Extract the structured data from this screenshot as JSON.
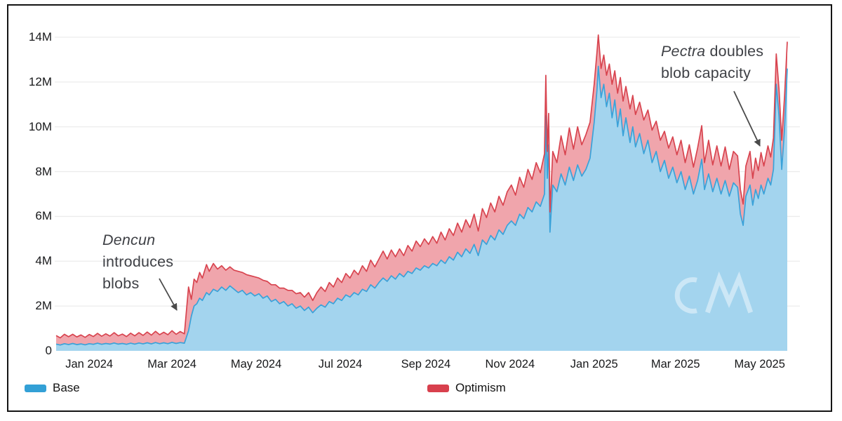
{
  "watermark": {
    "text": "CM"
  },
  "y_axis": {
    "ticks": [
      {
        "label": "14M",
        "value": 14
      },
      {
        "label": "12M",
        "value": 12
      },
      {
        "label": "10M",
        "value": 10
      },
      {
        "label": "8M",
        "value": 8
      },
      {
        "label": "6M",
        "value": 6
      },
      {
        "label": "4M",
        "value": 4
      },
      {
        "label": "2M",
        "value": 2
      },
      {
        "label": "0",
        "value": 0
      }
    ]
  },
  "x_axis": {
    "ticks": [
      {
        "label": "Jan 2024",
        "date": "2024-01-01"
      },
      {
        "label": "Mar 2024",
        "date": "2024-03-01"
      },
      {
        "label": "May 2024",
        "date": "2024-05-01"
      },
      {
        "label": "Jul 2024",
        "date": "2024-07-01"
      },
      {
        "label": "Sep 2024",
        "date": "2024-09-01"
      },
      {
        "label": "Nov 2024",
        "date": "2024-11-01"
      },
      {
        "label": "Jan 2025",
        "date": "2025-01-01"
      },
      {
        "label": "Mar 2025",
        "date": "2025-03-01"
      },
      {
        "label": "May 2025",
        "date": "2025-05-01"
      }
    ]
  },
  "legend": [
    {
      "label": "Base",
      "color": "#33a0d6"
    },
    {
      "label": "Optimism",
      "color": "#d8404d"
    }
  ],
  "annotations": {
    "dencun": {
      "italic": "Dencun",
      "line2": "introduces",
      "line3": "blobs"
    },
    "pectra": {
      "italic": "Pectra",
      "line1_rest": " doubles",
      "line2": "blob capacity"
    }
  },
  "chart_data": {
    "type": "area",
    "stacked": true,
    "title": "",
    "xlabel": "",
    "ylabel": "",
    "unit_suffix": "M",
    "ylim": [
      0,
      14
    ],
    "grid": "horizontal",
    "legend_position": "bottom",
    "x_range": [
      "2023-12-08",
      "2025-05-21"
    ],
    "series_names": [
      "Base",
      "Optimism"
    ],
    "colors": {
      "base_fill": "#a3d4ee",
      "base_stroke": "#3aa2d9",
      "optimism_fill": "#f0a5ac",
      "optimism_stroke": "#d8444f",
      "gridline": "#ececec",
      "arrow": "#4a4a4a"
    },
    "points_format": [
      "date",
      "base_millions",
      "optimism_millions"
    ],
    "points": [
      [
        "2023-12-08",
        0.3,
        0.38
      ],
      [
        "2023-12-11",
        0.26,
        0.32
      ],
      [
        "2023-12-14",
        0.32,
        0.42
      ],
      [
        "2023-12-17",
        0.28,
        0.35
      ],
      [
        "2023-12-20",
        0.33,
        0.41
      ],
      [
        "2023-12-23",
        0.28,
        0.34
      ],
      [
        "2023-12-26",
        0.31,
        0.4
      ],
      [
        "2023-12-29",
        0.27,
        0.33
      ],
      [
        "2024-01-01",
        0.32,
        0.41
      ],
      [
        "2024-01-04",
        0.29,
        0.35
      ],
      [
        "2024-01-07",
        0.34,
        0.44
      ],
      [
        "2024-01-10",
        0.29,
        0.36
      ],
      [
        "2024-01-13",
        0.33,
        0.43
      ],
      [
        "2024-01-16",
        0.3,
        0.36
      ],
      [
        "2024-01-19",
        0.35,
        0.46
      ],
      [
        "2024-01-22",
        0.3,
        0.37
      ],
      [
        "2024-01-25",
        0.33,
        0.42
      ],
      [
        "2024-01-28",
        0.29,
        0.35
      ],
      [
        "2024-01-31",
        0.34,
        0.45
      ],
      [
        "2024-02-03",
        0.3,
        0.37
      ],
      [
        "2024-02-06",
        0.35,
        0.46
      ],
      [
        "2024-02-09",
        0.31,
        0.38
      ],
      [
        "2024-02-12",
        0.36,
        0.48
      ],
      [
        "2024-02-15",
        0.31,
        0.39
      ],
      [
        "2024-02-18",
        0.37,
        0.5
      ],
      [
        "2024-02-21",
        0.32,
        0.4
      ],
      [
        "2024-02-24",
        0.36,
        0.47
      ],
      [
        "2024-02-27",
        0.32,
        0.4
      ],
      [
        "2024-03-01",
        0.38,
        0.52
      ],
      [
        "2024-03-04",
        0.33,
        0.41
      ],
      [
        "2024-03-07",
        0.37,
        0.49
      ],
      [
        "2024-03-10",
        0.34,
        0.42
      ],
      [
        "2024-03-13",
        0.9,
        1.95
      ],
      [
        "2024-03-15",
        1.55,
        0.75
      ],
      [
        "2024-03-17",
        2.0,
        1.2
      ],
      [
        "2024-03-19",
        2.1,
        0.95
      ],
      [
        "2024-03-21",
        2.35,
        1.15
      ],
      [
        "2024-03-23",
        2.25,
        1.0
      ],
      [
        "2024-03-26",
        2.6,
        1.25
      ],
      [
        "2024-03-28",
        2.5,
        1.05
      ],
      [
        "2024-03-31",
        2.75,
        1.15
      ],
      [
        "2024-04-03",
        2.65,
        1.0
      ],
      [
        "2024-04-06",
        2.85,
        0.95
      ],
      [
        "2024-04-09",
        2.7,
        0.9
      ],
      [
        "2024-04-12",
        2.9,
        0.85
      ],
      [
        "2024-04-15",
        2.75,
        0.85
      ],
      [
        "2024-04-18",
        2.6,
        0.95
      ],
      [
        "2024-04-21",
        2.7,
        0.8
      ],
      [
        "2024-04-24",
        2.5,
        0.9
      ],
      [
        "2024-04-27",
        2.6,
        0.75
      ],
      [
        "2024-04-30",
        2.45,
        0.85
      ],
      [
        "2024-05-03",
        2.55,
        0.7
      ],
      [
        "2024-05-06",
        2.35,
        0.8
      ],
      [
        "2024-05-09",
        2.45,
        0.65
      ],
      [
        "2024-05-12",
        2.2,
        0.75
      ],
      [
        "2024-05-15",
        2.3,
        0.65
      ],
      [
        "2024-05-18",
        2.1,
        0.7
      ],
      [
        "2024-05-21",
        2.2,
        0.6
      ],
      [
        "2024-05-24",
        2.0,
        0.7
      ],
      [
        "2024-05-27",
        2.1,
        0.6
      ],
      [
        "2024-05-30",
        1.9,
        0.65
      ],
      [
        "2024-06-02",
        2.0,
        0.6
      ],
      [
        "2024-06-05",
        1.8,
        0.6
      ],
      [
        "2024-06-08",
        1.95,
        0.65
      ],
      [
        "2024-06-11",
        1.7,
        0.55
      ],
      [
        "2024-06-14",
        1.9,
        0.7
      ],
      [
        "2024-06-17",
        2.05,
        0.8
      ],
      [
        "2024-06-20",
        1.95,
        0.7
      ],
      [
        "2024-06-23",
        2.2,
        0.85
      ],
      [
        "2024-06-26",
        2.1,
        0.75
      ],
      [
        "2024-06-29",
        2.35,
        0.9
      ],
      [
        "2024-07-02",
        2.25,
        0.8
      ],
      [
        "2024-07-05",
        2.5,
        0.95
      ],
      [
        "2024-07-08",
        2.4,
        0.85
      ],
      [
        "2024-07-11",
        2.6,
        1.0
      ],
      [
        "2024-07-14",
        2.5,
        0.9
      ],
      [
        "2024-07-17",
        2.75,
        1.05
      ],
      [
        "2024-07-20",
        2.65,
        0.9
      ],
      [
        "2024-07-23",
        2.95,
        1.1
      ],
      [
        "2024-07-26",
        2.8,
        0.95
      ],
      [
        "2024-07-29",
        3.05,
        1.05
      ],
      [
        "2024-08-01",
        3.25,
        1.2
      ],
      [
        "2024-08-04",
        3.1,
        1.0
      ],
      [
        "2024-08-07",
        3.35,
        1.15
      ],
      [
        "2024-08-10",
        3.2,
        1.0
      ],
      [
        "2024-08-13",
        3.45,
        1.1
      ],
      [
        "2024-08-16",
        3.3,
        0.95
      ],
      [
        "2024-08-19",
        3.55,
        1.15
      ],
      [
        "2024-08-22",
        3.45,
        1.0
      ],
      [
        "2024-08-25",
        3.7,
        1.2
      ],
      [
        "2024-08-28",
        3.6,
        1.05
      ],
      [
        "2024-08-31",
        3.8,
        1.2
      ],
      [
        "2024-09-03",
        3.7,
        1.05
      ],
      [
        "2024-09-06",
        3.9,
        1.2
      ],
      [
        "2024-09-09",
        3.8,
        1.0
      ],
      [
        "2024-09-12",
        4.05,
        1.25
      ],
      [
        "2024-09-15",
        3.9,
        1.05
      ],
      [
        "2024-09-18",
        4.2,
        1.25
      ],
      [
        "2024-09-21",
        4.05,
        1.1
      ],
      [
        "2024-09-24",
        4.4,
        1.3
      ],
      [
        "2024-09-27",
        4.2,
        1.1
      ],
      [
        "2024-09-30",
        4.55,
        1.3
      ],
      [
        "2024-10-03",
        4.35,
        1.15
      ],
      [
        "2024-10-06",
        4.75,
        1.35
      ],
      [
        "2024-10-09",
        4.25,
        1.1
      ],
      [
        "2024-10-12",
        4.95,
        1.4
      ],
      [
        "2024-10-15",
        4.75,
        1.2
      ],
      [
        "2024-10-18",
        5.15,
        1.45
      ],
      [
        "2024-10-21",
        4.95,
        1.25
      ],
      [
        "2024-10-24",
        5.4,
        1.5
      ],
      [
        "2024-10-27",
        5.2,
        1.3
      ],
      [
        "2024-10-30",
        5.6,
        1.5
      ],
      [
        "2024-11-02",
        5.8,
        1.6
      ],
      [
        "2024-11-05",
        5.6,
        1.35
      ],
      [
        "2024-11-08",
        6.1,
        1.65
      ],
      [
        "2024-11-11",
        5.9,
        1.4
      ],
      [
        "2024-11-14",
        6.4,
        1.7
      ],
      [
        "2024-11-17",
        6.2,
        1.45
      ],
      [
        "2024-11-20",
        6.65,
        1.75
      ],
      [
        "2024-11-23",
        6.45,
        1.5
      ],
      [
        "2024-11-26",
        7.0,
        1.8
      ],
      [
        "2024-11-27",
        10.5,
        1.8
      ],
      [
        "2024-11-28",
        7.7,
        1.2
      ],
      [
        "2024-11-29",
        9.2,
        1.4
      ],
      [
        "2024-11-30",
        5.3,
        0.9
      ],
      [
        "2024-12-02",
        7.4,
        1.5
      ],
      [
        "2024-12-05",
        7.1,
        1.3
      ],
      [
        "2024-12-08",
        7.9,
        1.7
      ],
      [
        "2024-12-11",
        7.4,
        1.35
      ],
      [
        "2024-12-14",
        8.2,
        1.75
      ],
      [
        "2024-12-17",
        7.6,
        1.4
      ],
      [
        "2024-12-20",
        8.3,
        1.7
      ],
      [
        "2024-12-23",
        7.8,
        1.4
      ],
      [
        "2024-12-26",
        8.1,
        1.55
      ],
      [
        "2024-12-29",
        8.6,
        1.6
      ],
      [
        "2025-01-01",
        10.2,
        1.7
      ],
      [
        "2025-01-03",
        11.6,
        1.7
      ],
      [
        "2025-01-04",
        12.7,
        1.4
      ],
      [
        "2025-01-06",
        11.3,
        1.3
      ],
      [
        "2025-01-08",
        11.9,
        1.3
      ],
      [
        "2025-01-10",
        10.9,
        1.4
      ],
      [
        "2025-01-12",
        11.5,
        1.3
      ],
      [
        "2025-01-14",
        10.4,
        1.5
      ],
      [
        "2025-01-16",
        11.2,
        1.3
      ],
      [
        "2025-01-18",
        10.0,
        1.5
      ],
      [
        "2025-01-20",
        10.8,
        1.4
      ],
      [
        "2025-01-22",
        9.6,
        1.55
      ],
      [
        "2025-01-24",
        10.4,
        1.4
      ],
      [
        "2025-01-27",
        9.3,
        1.5
      ],
      [
        "2025-01-29",
        10.0,
        1.4
      ],
      [
        "2025-01-31",
        9.1,
        1.45
      ],
      [
        "2025-02-03",
        9.7,
        1.4
      ],
      [
        "2025-02-06",
        8.8,
        1.5
      ],
      [
        "2025-02-09",
        9.4,
        1.35
      ],
      [
        "2025-02-12",
        8.4,
        1.45
      ],
      [
        "2025-02-15",
        8.9,
        1.35
      ],
      [
        "2025-02-18",
        8.0,
        1.4
      ],
      [
        "2025-02-21",
        8.5,
        1.3
      ],
      [
        "2025-02-24",
        7.7,
        1.35
      ],
      [
        "2025-02-27",
        8.2,
        1.35
      ],
      [
        "2025-03-02",
        7.5,
        1.25
      ],
      [
        "2025-03-05",
        8.0,
        1.4
      ],
      [
        "2025-03-08",
        7.2,
        1.2
      ],
      [
        "2025-03-11",
        7.8,
        1.4
      ],
      [
        "2025-03-14",
        7.0,
        1.2
      ],
      [
        "2025-03-17",
        7.6,
        1.45
      ],
      [
        "2025-03-20",
        8.55,
        1.5
      ],
      [
        "2025-03-22",
        7.2,
        1.2
      ],
      [
        "2025-03-25",
        7.9,
        1.5
      ],
      [
        "2025-03-28",
        7.1,
        1.2
      ],
      [
        "2025-03-31",
        7.7,
        1.45
      ],
      [
        "2025-04-03",
        7.0,
        1.25
      ],
      [
        "2025-04-06",
        7.6,
        1.5
      ],
      [
        "2025-04-09",
        6.9,
        1.2
      ],
      [
        "2025-04-12",
        7.5,
        1.4
      ],
      [
        "2025-04-15",
        7.3,
        1.4
      ],
      [
        "2025-04-17",
        6.1,
        1.1
      ],
      [
        "2025-04-19",
        5.6,
        0.95
      ],
      [
        "2025-04-21",
        6.9,
        1.35
      ],
      [
        "2025-04-24",
        7.4,
        1.5
      ],
      [
        "2025-04-26",
        6.5,
        1.2
      ],
      [
        "2025-04-28",
        7.2,
        1.4
      ],
      [
        "2025-04-30",
        6.8,
        1.25
      ],
      [
        "2025-05-02",
        7.4,
        1.45
      ],
      [
        "2025-05-04",
        7.0,
        1.25
      ],
      [
        "2025-05-07",
        7.7,
        1.45
      ],
      [
        "2025-05-09",
        7.4,
        1.25
      ],
      [
        "2025-05-11",
        8.1,
        1.4
      ],
      [
        "2025-05-13",
        11.9,
        1.35
      ],
      [
        "2025-05-15",
        10.5,
        1.2
      ],
      [
        "2025-05-17",
        8.1,
        1.3
      ],
      [
        "2025-05-19",
        9.9,
        1.45
      ],
      [
        "2025-05-21",
        12.6,
        1.2
      ]
    ]
  }
}
